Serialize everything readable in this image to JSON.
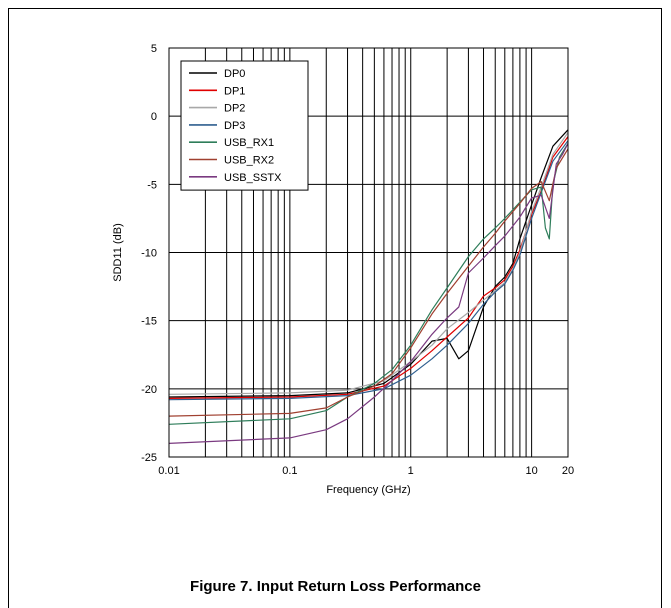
{
  "figure": {
    "caption": "Figure 7. Input Return Loss Performance"
  },
  "chart_data": {
    "type": "line",
    "title": "",
    "xlabel": "Frequency (GHz)",
    "ylabel": "SDD11 (dB)",
    "xscale": "log",
    "xlim": [
      0.01,
      20
    ],
    "ylim": [
      -25,
      5
    ],
    "x_ticks": [
      {
        "value": 0.01,
        "label": "0.01"
      },
      {
        "value": 0.1,
        "label": "0.1"
      },
      {
        "value": 1,
        "label": "1"
      },
      {
        "value": 10,
        "label": "10"
      },
      {
        "value": 20,
        "label": "20"
      }
    ],
    "y_ticks": [
      5,
      0,
      -5,
      -10,
      -15,
      -20,
      -25
    ],
    "grid": true,
    "legend_position": "top-left",
    "series": [
      {
        "name": "DP0",
        "color": "#000000",
        "x": [
          0.01,
          0.1,
          0.3,
          0.6,
          1,
          1.5,
          2,
          2.5,
          3,
          4,
          5,
          6,
          7,
          8,
          10,
          12,
          15,
          20
        ],
        "y": [
          -20.6,
          -20.5,
          -20.3,
          -19.6,
          -18.2,
          -16.5,
          -16.3,
          -17.8,
          -17.2,
          -14.0,
          -12.5,
          -11.8,
          -10.8,
          -9.0,
          -6.5,
          -4.5,
          -2.2,
          -1.0
        ]
      },
      {
        "name": "DP1",
        "color": "#e00000",
        "x": [
          0.01,
          0.1,
          0.3,
          0.6,
          1,
          1.5,
          2,
          3,
          4,
          5,
          6,
          7,
          8,
          10,
          12,
          15,
          20
        ],
        "y": [
          -20.7,
          -20.6,
          -20.4,
          -19.8,
          -18.5,
          -17.2,
          -16.2,
          -14.8,
          -13.2,
          -12.6,
          -12.0,
          -11.0,
          -9.8,
          -7.2,
          -5.5,
          -3.0,
          -1.5
        ]
      },
      {
        "name": "DP2",
        "color": "#a8a8a8",
        "x": [
          0.01,
          0.1,
          0.3,
          0.6,
          1,
          1.5,
          2,
          3,
          4,
          5,
          6,
          7,
          8,
          10,
          12,
          15,
          20
        ],
        "y": [
          -20.4,
          -20.3,
          -20.1,
          -19.4,
          -18.0,
          -16.8,
          -15.6,
          -14.4,
          -13.5,
          -12.8,
          -12.2,
          -11.2,
          -10.0,
          -7.0,
          -5.2,
          -2.8,
          -1.2
        ]
      },
      {
        "name": "DP3",
        "color": "#2f5f8f",
        "x": [
          0.01,
          0.1,
          0.3,
          0.6,
          1,
          1.5,
          2,
          3,
          4,
          5,
          6,
          7,
          8,
          10,
          12,
          15,
          20
        ],
        "y": [
          -20.8,
          -20.7,
          -20.5,
          -20.0,
          -19.0,
          -17.8,
          -16.8,
          -15.2,
          -13.8,
          -12.9,
          -12.3,
          -11.3,
          -10.2,
          -7.5,
          -5.6,
          -3.3,
          -1.8
        ]
      },
      {
        "name": "USB_RX1",
        "color": "#2e7d5a",
        "x": [
          0.01,
          0.1,
          0.2,
          0.3,
          0.5,
          0.7,
          1,
          1.5,
          2,
          3,
          4,
          5,
          6,
          8,
          10,
          12,
          13,
          14,
          15,
          17,
          20
        ],
        "y": [
          -22.6,
          -22.2,
          -21.6,
          -20.6,
          -19.6,
          -18.6,
          -16.8,
          -14.2,
          -12.6,
          -10.3,
          -9.0,
          -8.2,
          -7.5,
          -6.3,
          -5.4,
          -5.2,
          -8.2,
          -9.0,
          -5.0,
          -3.0,
          -2.0
        ]
      },
      {
        "name": "USB_RX2",
        "color": "#a04030",
        "x": [
          0.01,
          0.1,
          0.2,
          0.3,
          0.5,
          0.7,
          1,
          1.5,
          2,
          3,
          4,
          5,
          6,
          8,
          10,
          12,
          14,
          16,
          20
        ],
        "y": [
          -22.0,
          -21.8,
          -21.4,
          -20.6,
          -19.8,
          -18.9,
          -17.0,
          -14.5,
          -13.0,
          -11.0,
          -9.6,
          -8.6,
          -7.7,
          -6.4,
          -5.3,
          -4.8,
          -6.2,
          -3.8,
          -2.4
        ]
      },
      {
        "name": "USB_SSTX",
        "color": "#7a3a80",
        "x": [
          0.01,
          0.1,
          0.2,
          0.3,
          0.5,
          0.7,
          1,
          1.5,
          2,
          2.5,
          3,
          4,
          5,
          6,
          8,
          10,
          12,
          14,
          16,
          18,
          20
        ],
        "y": [
          -24.0,
          -23.6,
          -23.0,
          -22.2,
          -20.6,
          -19.4,
          -18.0,
          -16.0,
          -14.8,
          -14.0,
          -11.5,
          -10.4,
          -9.5,
          -8.8,
          -7.4,
          -6.0,
          -5.8,
          -7.5,
          -3.5,
          -2.8,
          -2.0
        ]
      }
    ]
  }
}
